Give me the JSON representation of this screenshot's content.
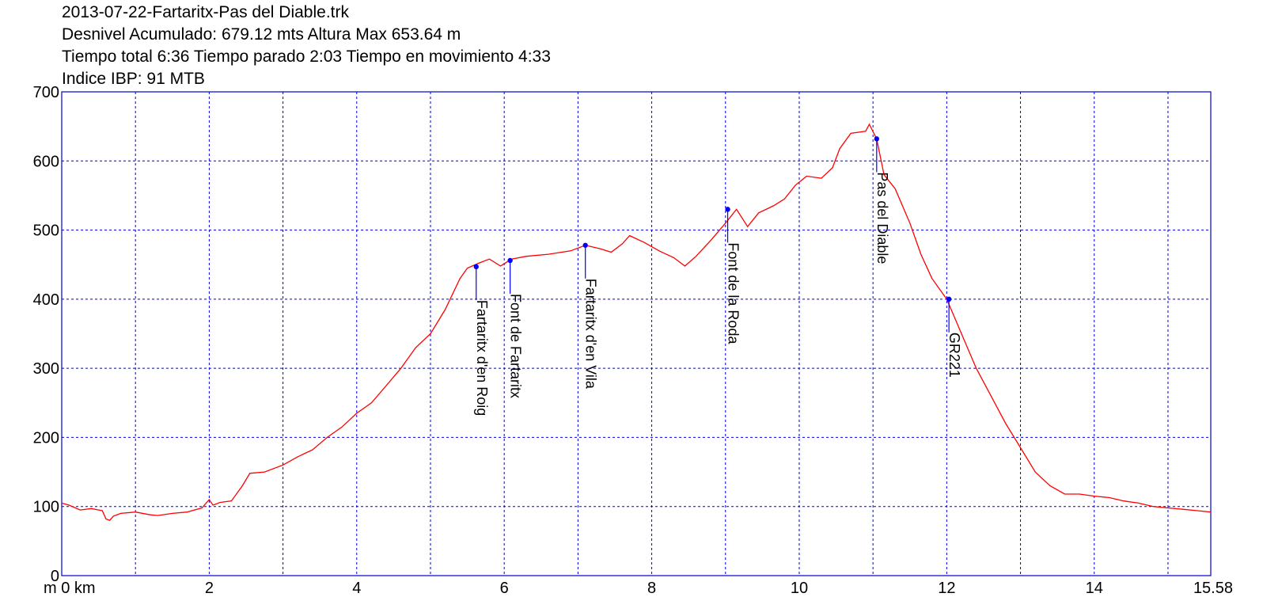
{
  "header": {
    "title": "2013-07-22-Fartaritx-Pas del Diable.trk",
    "line2": "Desnivel Acumulado: 679.12 mts  Altura Max 653.64 m",
    "line3": "Tiempo total 6:36 Tiempo parado 2:03 Tiempo en movimiento 4:33",
    "line4": "Indice IBP: 91 MTB"
  },
  "chart_data": {
    "type": "line",
    "title": "2013-07-22-Fartaritx-Pas del Diable.trk",
    "xlabel": "",
    "ylabel": "",
    "xlim": [
      0,
      15.58
    ],
    "ylim": [
      0,
      700
    ],
    "x_ticks": [
      0,
      2,
      4,
      6,
      8,
      10,
      12,
      14,
      15.58
    ],
    "x_tick_labels": [
      "m 0 km",
      "2",
      "4",
      "6",
      "8",
      "10",
      "12",
      "14",
      "15.58"
    ],
    "y_ticks": [
      0,
      100,
      200,
      300,
      400,
      500,
      600,
      700
    ],
    "y_tick_labels": [
      "0",
      "100",
      "200",
      "300",
      "400",
      "500",
      "600",
      "700"
    ],
    "grid": true,
    "grid_x_step": 1,
    "grid_y_step": 100,
    "line_color": "#ff0000",
    "grid_color": "#0000cc",
    "marker_color": "#0000ff",
    "series": [
      {
        "x": [
          0,
          0.1,
          0.25,
          0.4,
          0.55,
          0.6,
          0.65,
          0.7,
          0.8,
          1.0,
          1.2,
          1.3,
          1.5,
          1.7,
          1.9,
          2.0,
          2.05,
          2.15,
          2.3,
          2.45,
          2.55,
          2.75,
          3.0,
          3.2,
          3.4,
          3.6,
          3.8,
          4.0,
          4.2,
          4.4,
          4.6,
          4.8,
          5.0,
          5.2,
          5.4,
          5.5,
          5.65,
          5.8,
          5.95,
          6.1,
          6.3,
          6.6,
          6.9,
          7.1,
          7.3,
          7.45,
          7.6,
          7.7,
          7.9,
          8.1,
          8.3,
          8.45,
          8.6,
          8.8,
          9.0,
          9.15,
          9.3,
          9.45,
          9.65,
          9.8,
          9.95,
          10.1,
          10.3,
          10.45,
          10.55,
          10.7,
          10.9,
          10.95,
          11.05,
          11.15,
          11.3,
          11.5,
          11.65,
          11.8,
          11.9,
          12.0,
          12.2,
          12.4,
          12.6,
          12.8,
          13.0,
          13.2,
          13.4,
          13.6,
          13.8,
          14.0,
          14.2,
          14.4,
          14.6,
          14.8,
          15.0,
          15.2,
          15.4,
          15.58
        ],
        "y": [
          105,
          102,
          95,
          97,
          94,
          82,
          80,
          86,
          90,
          92,
          88,
          87,
          90,
          92,
          98,
          110,
          102,
          106,
          108,
          130,
          148,
          150,
          160,
          172,
          182,
          200,
          215,
          235,
          250,
          275,
          300,
          330,
          350,
          385,
          430,
          445,
          452,
          458,
          448,
          458,
          462,
          465,
          470,
          478,
          473,
          468,
          480,
          492,
          482,
          470,
          460,
          448,
          462,
          485,
          510,
          530,
          505,
          525,
          535,
          545,
          565,
          578,
          575,
          590,
          618,
          640,
          643,
          653,
          632,
          580,
          560,
          510,
          465,
          430,
          415,
          400,
          350,
          300,
          260,
          220,
          185,
          150,
          130,
          118,
          118,
          115,
          113,
          108,
          105,
          100,
          98,
          96,
          94,
          92
        ]
      }
    ],
    "waypoints": [
      {
        "name": "Fartaritx d'en Roig",
        "x": 5.62,
        "y": 447
      },
      {
        "name": "Font de Fartaritx",
        "x": 6.08,
        "y": 456
      },
      {
        "name": "Fartaritx d'en Vila",
        "x": 7.1,
        "y": 478
      },
      {
        "name": "Font de la Roda",
        "x": 9.03,
        "y": 530
      },
      {
        "name": "Pas del Diable",
        "x": 11.05,
        "y": 632
      },
      {
        "name": "GR221",
        "x": 12.03,
        "y": 400
      }
    ]
  }
}
